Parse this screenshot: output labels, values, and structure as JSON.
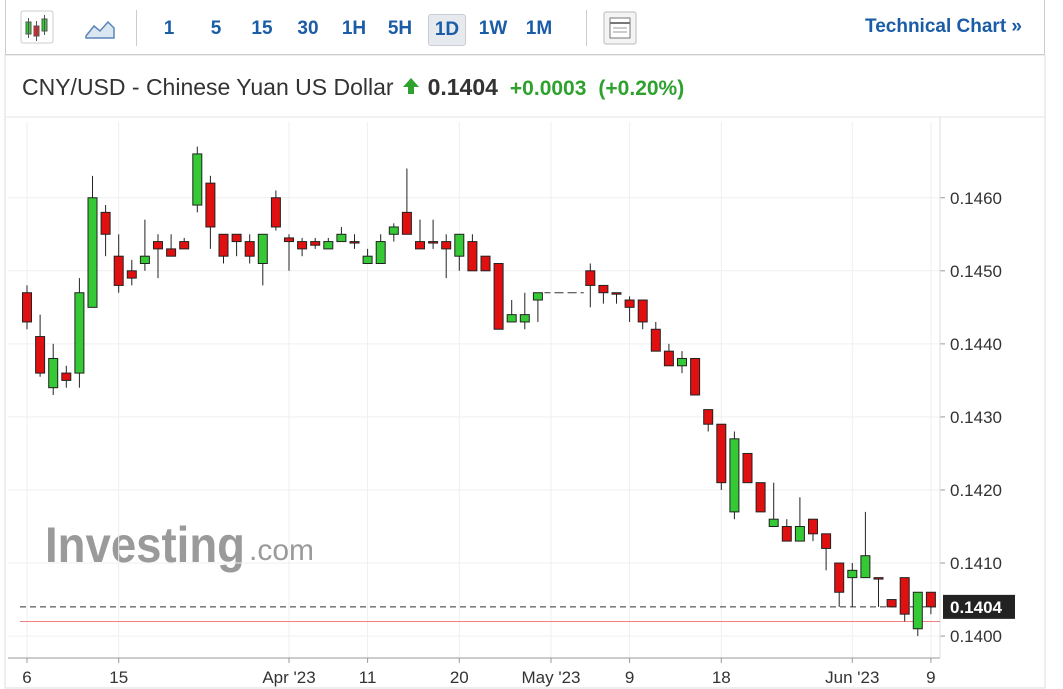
{
  "toolbar": {
    "intervals": [
      "1",
      "5",
      "15",
      "30",
      "1H",
      "5H",
      "1D",
      "1W",
      "1M"
    ],
    "selected": "1D",
    "link": "Technical Chart »"
  },
  "header": {
    "title": "CNY/USD - Chinese Yuan US Dollar",
    "price": "0.1404",
    "change": "+0.0003",
    "change_percent": "(+0.20%)"
  },
  "watermark": {
    "brand": "Investing",
    "suffix": ".com"
  },
  "chart_data": {
    "type": "candlestick",
    "categories": [
      "6",
      null,
      null,
      null,
      null,
      null,
      null,
      "15",
      null,
      null,
      null,
      null,
      null,
      null,
      null,
      null,
      null,
      null,
      null,
      null,
      "Apr '23",
      null,
      null,
      null,
      null,
      null,
      "11",
      null,
      null,
      null,
      null,
      null,
      null,
      "20",
      null,
      null,
      null,
      null,
      null,
      null,
      "May '23",
      null,
      null,
      null,
      null,
      null,
      "9",
      null,
      null,
      null,
      null,
      null,
      null,
      "18",
      null,
      null,
      null,
      null,
      null,
      null,
      null,
      null,
      null,
      "Jun '23",
      null,
      null,
      null,
      null,
      null,
      "9"
    ],
    "open": [
      0.1447,
      0.1441,
      0.1434,
      0.1436,
      0.1436,
      0.1445,
      0.1458,
      0.1452,
      0.145,
      0.1451,
      0.1454,
      0.1453,
      0.1454,
      0.1459,
      0.1462,
      0.1455,
      0.1455,
      0.1454,
      0.1451,
      0.146,
      0.14545,
      0.1454,
      0.1454,
      0.1453,
      0.1454,
      0.1454,
      0.1451,
      0.1451,
      0.1455,
      0.1458,
      0.1454,
      0.1454,
      0.1454,
      0.1452,
      0.1454,
      0.1452,
      0.1451,
      0.1443,
      0.1443,
      0.1446,
      0.1447,
      0.1447,
      0.1447,
      0.145,
      0.1448,
      0.1447,
      0.1446,
      0.1446,
      0.1442,
      0.1439,
      0.1437,
      0.1438,
      0.1431,
      0.1429,
      0.1417,
      0.1425,
      0.1421,
      0.1415,
      0.1415,
      0.1413,
      0.1416,
      0.1414,
      0.141,
      0.1408,
      0.1408,
      0.1408,
      0.1405,
      0.1408,
      0.1401,
      0.1406
    ],
    "high": [
      0.1448,
      0.1444,
      0.144,
      0.1437,
      0.1449,
      0.1463,
      0.1459,
      0.1455,
      0.14515,
      0.1457,
      0.1455,
      0.1455,
      0.14545,
      0.1467,
      0.1463,
      0.1455,
      0.1455,
      0.1455,
      0.1455,
      0.1461,
      0.1455,
      0.14545,
      0.14545,
      0.14545,
      0.1456,
      0.1455,
      0.1453,
      0.1455,
      0.14565,
      0.1464,
      0.1457,
      0.1457,
      0.1455,
      0.1455,
      0.1455,
      0.1452,
      0.1451,
      0.1446,
      0.1447,
      0.1447,
      0.1447,
      0.1447,
      0.1447,
      0.1451,
      0.1448,
      0.1447,
      0.14465,
      0.1446,
      0.1443,
      0.144,
      0.1439,
      0.1438,
      0.1431,
      0.1429,
      0.1428,
      0.1425,
      0.1421,
      0.1421,
      0.1416,
      0.1419,
      0.1416,
      0.1414,
      0.141,
      0.141,
      0.1417,
      0.1408,
      0.1405,
      0.1408,
      0.1406,
      0.1406
    ],
    "low": [
      0.1442,
      0.14355,
      0.1433,
      0.1434,
      0.1434,
      0.1445,
      0.1452,
      0.1447,
      0.1448,
      0.145,
      0.1449,
      0.1452,
      0.1453,
      0.1458,
      0.1453,
      0.1451,
      0.1452,
      0.1451,
      0.1448,
      0.14555,
      0.145,
      0.1452,
      0.1453,
      0.1453,
      0.1454,
      0.1453,
      0.1451,
      0.1451,
      0.1454,
      0.1455,
      0.1453,
      0.1453,
      0.1449,
      0.145,
      0.145,
      0.145,
      0.1442,
      0.1443,
      0.1442,
      0.1443,
      0.1447,
      0.1447,
      0.1447,
      0.1445,
      0.14455,
      0.14455,
      0.1443,
      0.1442,
      0.1439,
      0.1437,
      0.1436,
      0.1433,
      0.1428,
      0.142,
      0.1416,
      0.1421,
      0.1417,
      0.1415,
      0.1413,
      0.1413,
      0.1413,
      0.1409,
      0.1404,
      0.1404,
      0.1408,
      0.1404,
      0.1404,
      0.1402,
      0.14,
      0.1403
    ],
    "close": [
      0.1443,
      0.1436,
      0.1438,
      0.1435,
      0.1447,
      0.146,
      0.1455,
      0.1448,
      0.1449,
      0.1452,
      0.1453,
      0.1452,
      0.1453,
      0.1466,
      0.1456,
      0.1452,
      0.1454,
      0.1452,
      0.1455,
      0.1456,
      0.1454,
      0.1453,
      0.14535,
      0.1454,
      0.1455,
      0.14538,
      0.1452,
      0.1454,
      0.1456,
      0.1455,
      0.1453,
      0.14538,
      0.1453,
      0.1455,
      0.145,
      0.145,
      0.1442,
      0.1444,
      0.1444,
      0.1447,
      0.1447,
      0.1447,
      0.1447,
      0.1448,
      0.1447,
      0.14468,
      0.1445,
      0.1443,
      0.1439,
      0.1437,
      0.1438,
      0.1433,
      0.1429,
      0.1421,
      0.1427,
      0.1421,
      0.1417,
      0.1416,
      0.1413,
      0.1415,
      0.1414,
      0.1412,
      0.1406,
      0.1409,
      0.1411,
      0.14078,
      0.1404,
      0.1403,
      0.1406,
      0.1404
    ],
    "up_color": "#35c935",
    "down_color": "#e01010",
    "ylim": [
      0.1397,
      0.1469
    ],
    "yticks": [
      {
        "value": 0.14,
        "label": "0.1400"
      },
      {
        "value": 0.141,
        "label": "0.1410"
      },
      {
        "value": 0.142,
        "label": "0.1420"
      },
      {
        "value": 0.143,
        "label": "0.1430"
      },
      {
        "value": 0.144,
        "label": "0.1440"
      },
      {
        "value": 0.145,
        "label": "0.1450"
      },
      {
        "value": 0.146,
        "label": "0.1460"
      }
    ],
    "last_price": 0.1404,
    "reference_line": 0.1402,
    "grid": true
  }
}
